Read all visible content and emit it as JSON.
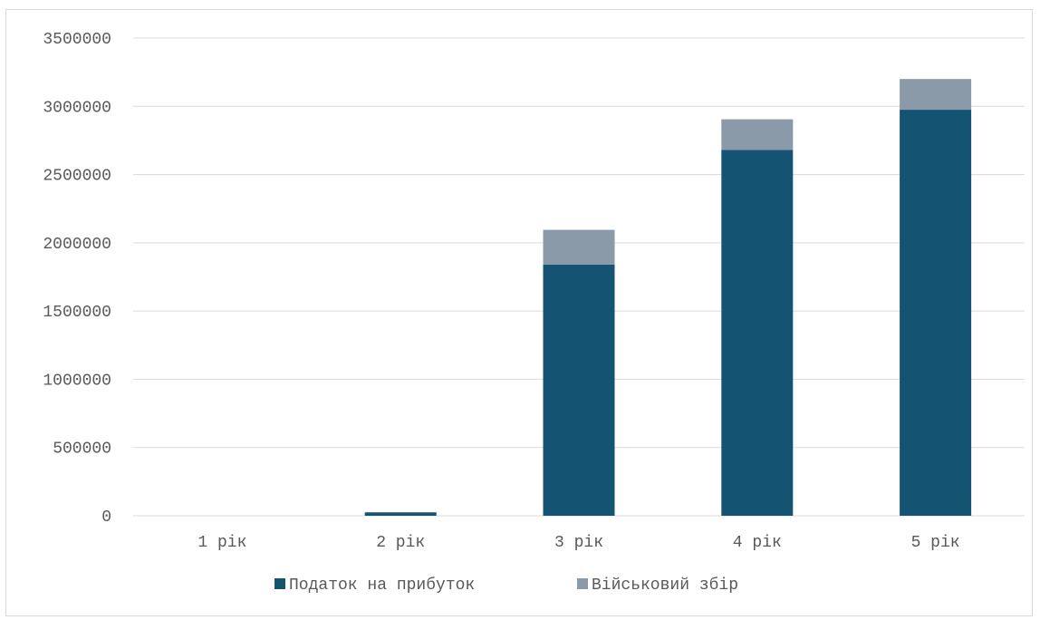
{
  "chart_data": {
    "type": "bar",
    "stacked": true,
    "categories": [
      "1 рік",
      "2 рік",
      "3 рік",
      "4 рік",
      "5 рік"
    ],
    "series": [
      {
        "name": "Податок на прибуток",
        "color": "#145472",
        "values": [
          0,
          25000,
          1840000,
          2680000,
          2975000
        ]
      },
      {
        "name": "Військовий збір",
        "color": "#8a9aa8",
        "values": [
          0,
          2000,
          255000,
          225000,
          225000
        ]
      }
    ],
    "title": "",
    "xlabel": "",
    "ylabel": "",
    "ylim": [
      0,
      3500000
    ],
    "yticks": [
      0,
      500000,
      1000000,
      1500000,
      2000000,
      2500000,
      3000000,
      3500000
    ],
    "grid": true,
    "legend": "bottom"
  }
}
